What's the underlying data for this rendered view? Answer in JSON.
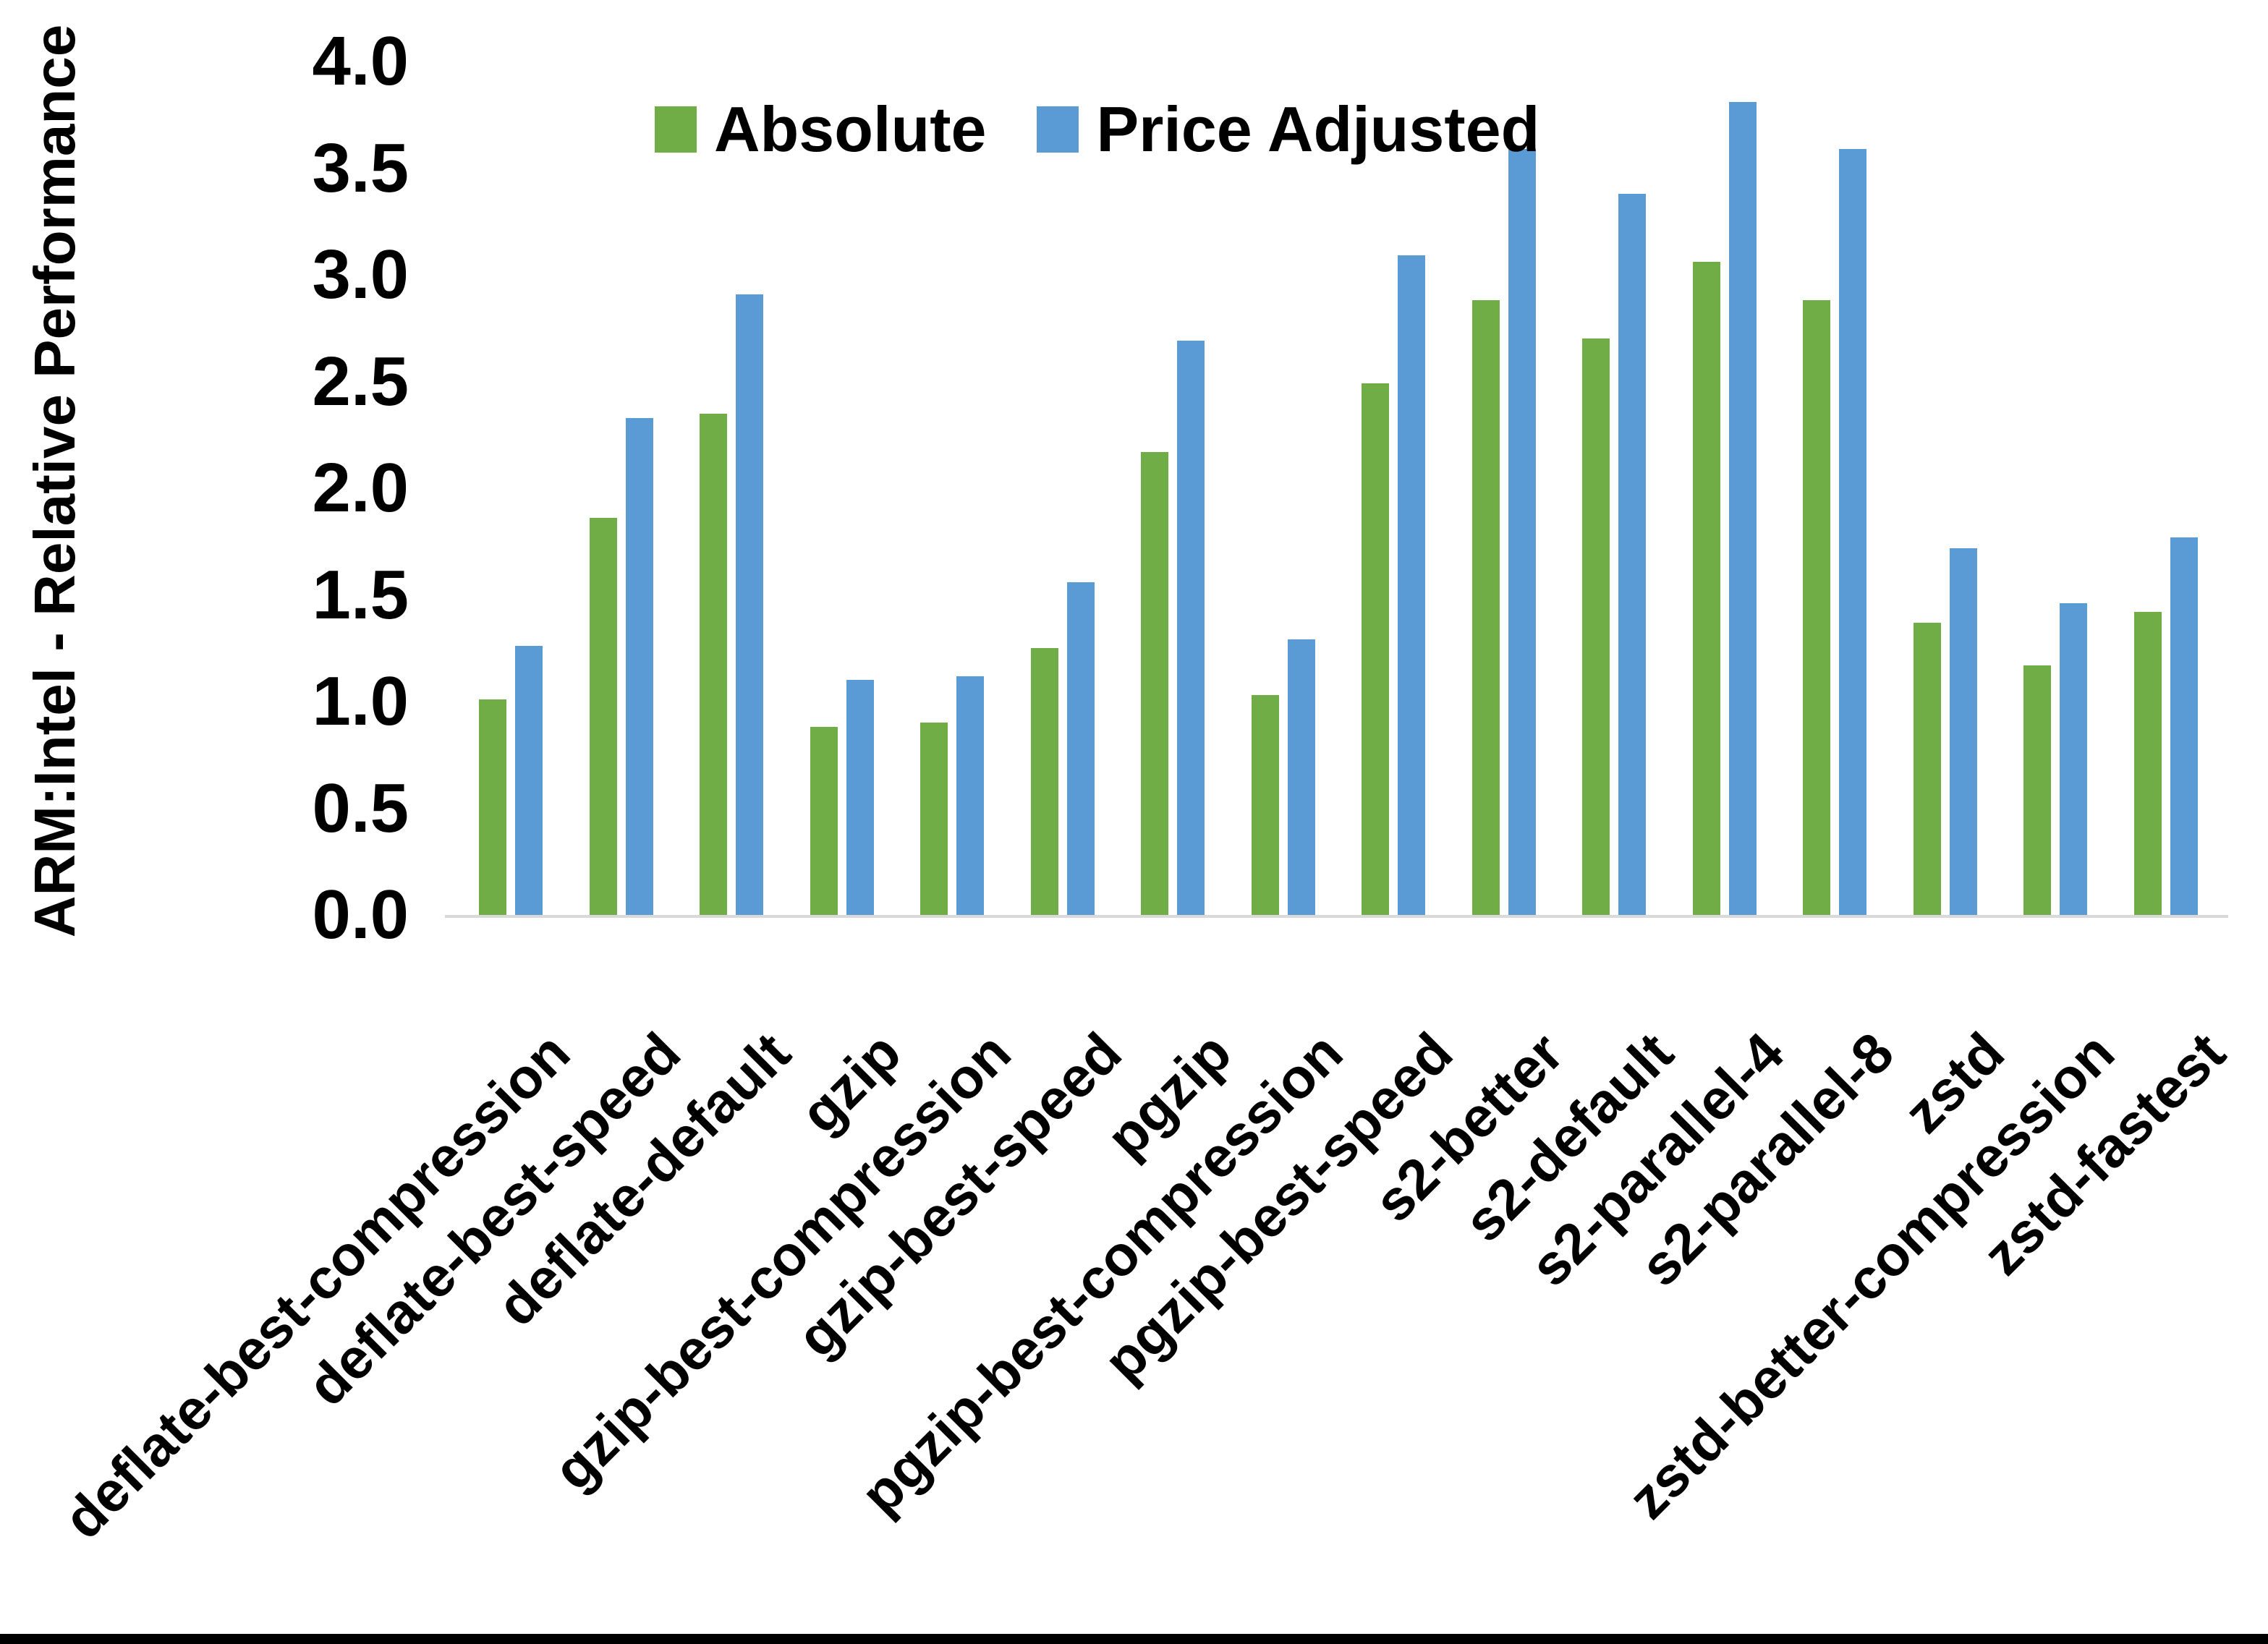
{
  "chart_data": {
    "type": "bar",
    "title": "",
    "xlabel": "",
    "ylabel": "ARM:Intel - Relative Performance",
    "ylim": [
      0,
      4
    ],
    "ytick_step": 0.5,
    "ytick_labels": [
      "0.0",
      "0.5",
      "1.0",
      "1.5",
      "2.0",
      "2.5",
      "3.0",
      "3.5",
      "4.0"
    ],
    "grid": false,
    "legend_position": "top-center-inside",
    "axis_line_color": "#d9d9d9",
    "categories": [
      "deflate-best-compression",
      "deflate-best-speed",
      "deflate-default",
      "gzip",
      "gzip-best-compression",
      "gzip-best-speed",
      "pgzip",
      "pgzip-best-compression",
      "pgzip-best-speed",
      "s2-better",
      "s2-default",
      "s2-parallel-4",
      "s2-parallel-8",
      "zstd",
      "zstd-better-compression",
      "zstd-fastest"
    ],
    "series": [
      {
        "name": "Absolute",
        "color": "#70AD47",
        "values": [
          1.01,
          1.86,
          2.35,
          0.88,
          0.9,
          1.25,
          2.17,
          1.03,
          2.49,
          2.88,
          2.7,
          3.06,
          2.88,
          1.37,
          1.17,
          1.42
        ]
      },
      {
        "name": "Price Adjusted",
        "color": "#5B9BD5",
        "values": [
          1.26,
          2.33,
          2.91,
          1.1,
          1.12,
          1.56,
          2.69,
          1.29,
          3.09,
          3.59,
          3.38,
          3.81,
          3.59,
          1.72,
          1.46,
          1.77
        ]
      }
    ]
  }
}
